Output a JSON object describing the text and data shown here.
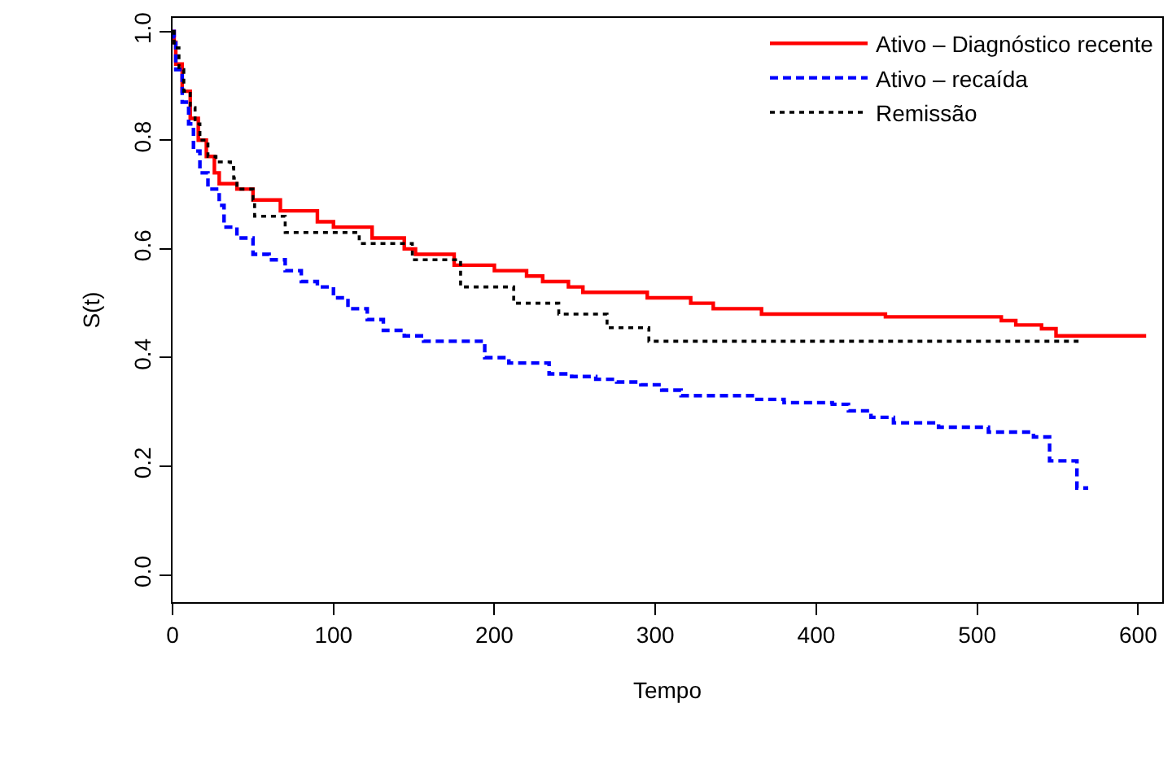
{
  "chart_data": {
    "type": "step",
    "xlabel": "Tempo",
    "ylabel": "S(t)",
    "xlim": [
      0,
      615
    ],
    "ylim": [
      -0.05,
      1.025
    ],
    "xticks": [
      0,
      100,
      200,
      300,
      400,
      500,
      600
    ],
    "yticks": [
      {
        "value": 0,
        "label": "0.0"
      },
      {
        "value": 0.2,
        "label": "0.2"
      },
      {
        "value": 0.4,
        "label": "0.4"
      },
      {
        "value": 0.6,
        "label": "0.6"
      },
      {
        "value": 0.8,
        "label": "0.8"
      },
      {
        "value": 1,
        "label": "1.0"
      }
    ],
    "legend": "top right",
    "marker": "none",
    "series": [
      {
        "name": "Ativo – Diagnóstico recente",
        "color": "#ff0000",
        "line_style": "solid",
        "x": [
          0,
          1,
          2,
          6,
          11,
          16,
          21,
          26,
          29,
          40,
          50,
          67,
          77,
          90,
          100,
          124,
          144,
          151,
          175,
          200,
          220,
          230,
          246,
          255,
          265,
          295,
          322,
          336,
          366,
          443,
          515,
          524,
          540,
          549,
          605
        ],
        "values": [
          1.0,
          0.98,
          0.94,
          0.89,
          0.84,
          0.8,
          0.77,
          0.74,
          0.72,
          0.71,
          0.69,
          0.67,
          0.67,
          0.65,
          0.64,
          0.62,
          0.6,
          0.59,
          0.57,
          0.56,
          0.55,
          0.54,
          0.53,
          0.52,
          0.52,
          0.51,
          0.5,
          0.49,
          0.48,
          0.475,
          0.468,
          0.46,
          0.453,
          0.44,
          0.44
        ]
      },
      {
        "name": "Ativo – recaída",
        "color": "#0000ff",
        "line_style": "dashed",
        "x": [
          0,
          1,
          2,
          6,
          10,
          13,
          17,
          22,
          29,
          32,
          40,
          50,
          60,
          70,
          80,
          90,
          100,
          109,
          121,
          131,
          144,
          156,
          194,
          209,
          222,
          234,
          248,
          263,
          276,
          291,
          304,
          316,
          362,
          380,
          410,
          420,
          434,
          448,
          476,
          507,
          535,
          545,
          562,
          569
        ],
        "values": [
          1.0,
          0.99,
          0.93,
          0.87,
          0.83,
          0.78,
          0.74,
          0.71,
          0.68,
          0.64,
          0.62,
          0.59,
          0.58,
          0.56,
          0.54,
          0.53,
          0.51,
          0.49,
          0.47,
          0.45,
          0.44,
          0.43,
          0.4,
          0.39,
          0.39,
          0.37,
          0.365,
          0.36,
          0.355,
          0.35,
          0.34,
          0.33,
          0.323,
          0.317,
          0.314,
          0.302,
          0.29,
          0.28,
          0.272,
          0.263,
          0.254,
          0.21,
          0.16,
          0.16
        ]
      },
      {
        "name": "Remissão",
        "color": "#000000",
        "line_style": "dotted",
        "x": [
          0,
          1,
          4,
          7,
          11,
          14,
          17,
          22,
          27,
          36,
          38,
          40,
          50,
          51,
          70,
          116,
          149,
          179,
          212,
          240,
          270,
          296,
          563
        ],
        "values": [
          1.0,
          0.97,
          0.93,
          0.89,
          0.86,
          0.83,
          0.8,
          0.77,
          0.76,
          0.75,
          0.73,
          0.71,
          0.69,
          0.66,
          0.63,
          0.61,
          0.58,
          0.53,
          0.5,
          0.48,
          0.455,
          0.43,
          0.43
        ]
      }
    ]
  }
}
